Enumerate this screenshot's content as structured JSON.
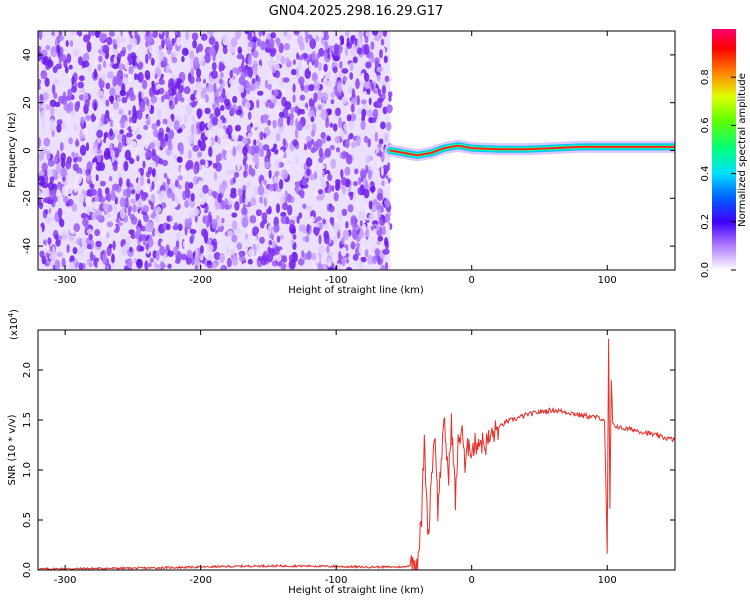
{
  "figure_title": "GN04.2025.298.16.29.G17",
  "chart_data": [
    {
      "type": "heatmap",
      "title": "GN04.2025.298.16.29.G17",
      "xlabel": "Height of straight line (km)",
      "ylabel": "Frequency (Hz)",
      "xlim": [
        -320,
        150
      ],
      "ylim": [
        -50,
        50
      ],
      "xticks": [
        -300,
        -200,
        -100,
        0,
        100
      ],
      "yticks": [
        -40,
        -20,
        0,
        20,
        40
      ],
      "xtick_labels": [
        "-300",
        "-200",
        "-100",
        "0",
        "100"
      ],
      "ytick_labels": [
        "-40",
        "-20",
        "0",
        "20",
        "40"
      ],
      "noise_region_x": [
        -320,
        -60
      ],
      "signal_ridge": [
        {
          "x": -60,
          "f": 0
        },
        {
          "x": -50,
          "f": -1
        },
        {
          "x": -40,
          "f": -2
        },
        {
          "x": -30,
          "f": -1
        },
        {
          "x": -20,
          "f": 1
        },
        {
          "x": -10,
          "f": 2
        },
        {
          "x": 0,
          "f": 1
        },
        {
          "x": 20,
          "f": 0.5
        },
        {
          "x": 40,
          "f": 0.5
        },
        {
          "x": 60,
          "f": 1
        },
        {
          "x": 80,
          "f": 1.5
        },
        {
          "x": 100,
          "f": 1.5
        },
        {
          "x": 120,
          "f": 1.5
        },
        {
          "x": 150,
          "f": 1.5
        }
      ],
      "colorbar": {
        "label": "Normalized spectral amplitude",
        "range": [
          0.0,
          1.0
        ],
        "ticks": [
          0.0,
          0.2,
          0.4,
          0.6,
          0.8
        ],
        "tick_labels": [
          "0.0",
          "0.2",
          "0.4",
          "0.6",
          "0.8"
        ]
      }
    },
    {
      "type": "line",
      "xlabel": "Height of straight line (km)",
      "ylabel": "SNR (10 * v/v)",
      "scale_label": "(x10",
      "scale_exponent": "4",
      "scale_suffix": ")",
      "xlim": [
        -320,
        150
      ],
      "ylim": [
        0,
        2.4
      ],
      "xticks": [
        -300,
        -200,
        -100,
        0,
        100
      ],
      "yticks": [
        0.0,
        0.5,
        1.0,
        1.5,
        2.0
      ],
      "xtick_labels": [
        "-300",
        "-200",
        "-100",
        "0",
        "100"
      ],
      "ytick_labels": [
        "0.0",
        "0.5",
        "1.0",
        "1.5",
        "2.0"
      ],
      "color": "#e8302a",
      "series": [
        {
          "name": "SNR",
          "x": [
            -320,
            -280,
            -240,
            -200,
            -160,
            -120,
            -80,
            -50,
            -45,
            -40,
            -37,
            -35,
            -32,
            -30,
            -27,
            -25,
            -22,
            -20,
            -17,
            -15,
            -12,
            -10,
            -7,
            -5,
            -2,
            0,
            5,
            10,
            15,
            20,
            25,
            30,
            40,
            50,
            60,
            70,
            80,
            90,
            95,
            98,
            100,
            101,
            102,
            103,
            104,
            105,
            110,
            120,
            130,
            140,
            150
          ],
          "y": [
            0.01,
            0.015,
            0.02,
            0.03,
            0.04,
            0.04,
            0.03,
            0.03,
            0.05,
            0.1,
            0.5,
            1.3,
            0.3,
            0.9,
            1.4,
            0.6,
            1.2,
            1.45,
            0.9,
            1.5,
            0.7,
            1.25,
            1.45,
            1.0,
            1.3,
            1.2,
            1.3,
            1.25,
            1.35,
            1.42,
            1.48,
            1.5,
            1.55,
            1.58,
            1.6,
            1.58,
            1.55,
            1.53,
            1.52,
            1.5,
            0.15,
            2.3,
            0.6,
            1.9,
            1.45,
            1.45,
            1.42,
            1.4,
            1.37,
            1.33,
            1.3
          ]
        }
      ]
    }
  ]
}
